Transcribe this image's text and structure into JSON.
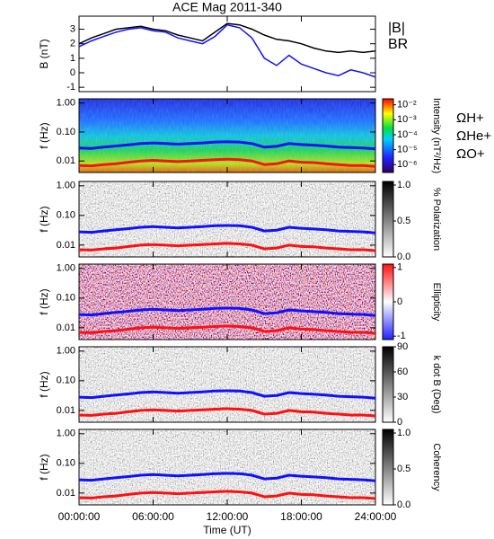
{
  "chart_data": [
    {
      "type": "line",
      "title": "ACE Mag 2011-340",
      "ylabel": "B (nT)",
      "xlim": [
        0,
        24
      ],
      "ylim": [
        -1.3,
        3.9
      ],
      "yticks": [
        -1,
        0,
        1,
        2,
        3
      ],
      "x": [
        0,
        1,
        2,
        3,
        4,
        5,
        6,
        7,
        8,
        9,
        10,
        11,
        12,
        13,
        14,
        15,
        16,
        17,
        18,
        19,
        20,
        21,
        22,
        23,
        24
      ],
      "series": [
        {
          "name": "|B|",
          "color": "#000000",
          "values": [
            2.0,
            2.4,
            2.7,
            3.0,
            3.1,
            3.2,
            3.0,
            2.9,
            2.6,
            2.4,
            2.2,
            2.8,
            3.4,
            3.3,
            3.0,
            2.6,
            2.3,
            2.2,
            2.0,
            1.7,
            1.5,
            1.4,
            1.5,
            1.4,
            1.5
          ]
        },
        {
          "name": "BR",
          "color": "#1010ff",
          "values": [
            1.8,
            2.2,
            2.5,
            2.8,
            3.0,
            3.1,
            2.9,
            2.8,
            2.4,
            2.2,
            2.0,
            2.5,
            3.3,
            3.1,
            2.4,
            1.0,
            0.5,
            1.2,
            0.6,
            0.3,
            0.0,
            -0.2,
            0.2,
            0.0,
            -0.3
          ]
        }
      ]
    },
    {
      "type": "spectrogram",
      "ylabel": "f (Hz)",
      "log_scale": true,
      "xlim": [
        0,
        24
      ],
      "ylim": [
        0.004,
        1.4
      ],
      "yticks": [
        {
          "value": 1,
          "label": "1.00"
        },
        {
          "value": 0.1,
          "label": "0.10"
        },
        {
          "value": 0.01,
          "label": "0.01"
        }
      ],
      "palette": "rainbow",
      "colorbar": {
        "label": "Intensity (nT²/Hz)",
        "log_scale": true,
        "lim": [
          3e-07,
          0.025
        ],
        "ticks": [
          {
            "value": 0.01,
            "label": "10⁻²"
          },
          {
            "value": 0.001,
            "label": "10⁻³"
          },
          {
            "value": 0.0001,
            "label": "10⁻⁴"
          },
          {
            "value": 1e-05,
            "label": "10⁻⁵"
          },
          {
            "value": 1e-06,
            "label": "10⁻⁶"
          }
        ]
      },
      "x": [
        0,
        1,
        2,
        3,
        4,
        5,
        6,
        7,
        8,
        9,
        10,
        11,
        12,
        13,
        14,
        15,
        16,
        17,
        18,
        19,
        20,
        21,
        22,
        23,
        24
      ],
      "series": [
        {
          "name": "ΩH+",
          "color": "#1010ff",
          "values": [
            0.028,
            0.027,
            0.03,
            0.033,
            0.036,
            0.04,
            0.042,
            0.04,
            0.038,
            0.04,
            0.042,
            0.045,
            0.046,
            0.045,
            0.04,
            0.03,
            0.032,
            0.04,
            0.037,
            0.035,
            0.033,
            0.03,
            0.029,
            0.028,
            0.026
          ]
        },
        {
          "name": "ΩHe+",
          "color": "#ff1010",
          "values": [
            0.007,
            0.0068,
            0.0075,
            0.008,
            0.009,
            0.01,
            0.0105,
            0.01,
            0.0095,
            0.01,
            0.0105,
            0.011,
            0.0115,
            0.011,
            0.01,
            0.0075,
            0.008,
            0.01,
            0.009,
            0.0088,
            0.008,
            0.0075,
            0.007,
            0.007,
            0.0065
          ]
        },
        {
          "name": "ΩO+",
          "color": "#ff00ff",
          "values": [
            null,
            null,
            null,
            null,
            null,
            null,
            null,
            null,
            null,
            null,
            null,
            null,
            null,
            null,
            null,
            null,
            null,
            null,
            null,
            null,
            null,
            null,
            null,
            null,
            null
          ]
        }
      ]
    },
    {
      "type": "spectrogram",
      "ylabel": "f (Hz)",
      "log_scale": true,
      "xlim": [
        0,
        24
      ],
      "ylim": [
        0.004,
        1.4
      ],
      "yticks": [
        {
          "value": 1,
          "label": "1.00"
        },
        {
          "value": 0.1,
          "label": "0.10"
        },
        {
          "value": 0.01,
          "label": "0.01"
        }
      ],
      "palette": "gray",
      "colorbar": {
        "label": "% Polarization",
        "lim": [
          0,
          1.05
        ],
        "ticks": [
          {
            "value": 0,
            "label": "0.0"
          },
          0.5,
          {
            "value": 1,
            "label": "1.0"
          }
        ]
      },
      "x": [
        0,
        1,
        2,
        3,
        4,
        5,
        6,
        7,
        8,
        9,
        10,
        11,
        12,
        13,
        14,
        15,
        16,
        17,
        18,
        19,
        20,
        21,
        22,
        23,
        24
      ],
      "series": [
        {
          "color": "#1010ff",
          "values": [
            0.028,
            0.027,
            0.03,
            0.033,
            0.036,
            0.04,
            0.042,
            0.04,
            0.038,
            0.04,
            0.042,
            0.045,
            0.046,
            0.045,
            0.04,
            0.03,
            0.032,
            0.04,
            0.037,
            0.035,
            0.033,
            0.03,
            0.029,
            0.028,
            0.026
          ]
        },
        {
          "color": "#ff1010",
          "values": [
            0.007,
            0.0068,
            0.0075,
            0.008,
            0.009,
            0.01,
            0.0105,
            0.01,
            0.0095,
            0.01,
            0.0105,
            0.011,
            0.0115,
            0.011,
            0.01,
            0.0075,
            0.008,
            0.01,
            0.009,
            0.0088,
            0.008,
            0.0075,
            0.007,
            0.007,
            0.0065
          ]
        }
      ]
    },
    {
      "type": "spectrogram",
      "ylabel": "f (Hz)",
      "log_scale": true,
      "xlim": [
        0,
        24
      ],
      "ylim": [
        0.004,
        1.4
      ],
      "yticks": [
        {
          "value": 1,
          "label": "1.00"
        },
        {
          "value": 0.1,
          "label": "0.10"
        },
        {
          "value": 0.01,
          "label": "0.01"
        }
      ],
      "palette": "diverging",
      "colorbar": {
        "label": "Ellipticity",
        "lim": [
          -1.1,
          1.1
        ],
        "ticks": [
          1,
          0,
          -1
        ]
      },
      "x": [
        0,
        1,
        2,
        3,
        4,
        5,
        6,
        7,
        8,
        9,
        10,
        11,
        12,
        13,
        14,
        15,
        16,
        17,
        18,
        19,
        20,
        21,
        22,
        23,
        24
      ],
      "series": [
        {
          "color": "#1010ff",
          "values": [
            0.028,
            0.027,
            0.03,
            0.033,
            0.036,
            0.04,
            0.042,
            0.04,
            0.038,
            0.04,
            0.042,
            0.045,
            0.046,
            0.045,
            0.04,
            0.03,
            0.032,
            0.04,
            0.037,
            0.035,
            0.033,
            0.03,
            0.029,
            0.028,
            0.026
          ]
        },
        {
          "color": "#ff1010",
          "values": [
            0.007,
            0.0068,
            0.0075,
            0.008,
            0.009,
            0.01,
            0.0105,
            0.01,
            0.0095,
            0.01,
            0.0105,
            0.011,
            0.0115,
            0.011,
            0.01,
            0.0075,
            0.008,
            0.01,
            0.009,
            0.0088,
            0.008,
            0.0075,
            0.007,
            0.007,
            0.0065
          ]
        }
      ]
    },
    {
      "type": "spectrogram",
      "ylabel": "f (Hz)",
      "log_scale": true,
      "xlim": [
        0,
        24
      ],
      "ylim": [
        0.004,
        1.4
      ],
      "yticks": [
        {
          "value": 1,
          "label": "1.00"
        },
        {
          "value": 0.1,
          "label": "0.10"
        },
        {
          "value": 0.01,
          "label": "0.01"
        }
      ],
      "palette": "gray",
      "colorbar": {
        "label": "k dot B (Deg)",
        "lim": [
          0,
          90
        ],
        "ticks": [
          90,
          60,
          30,
          0
        ]
      },
      "x": [
        0,
        1,
        2,
        3,
        4,
        5,
        6,
        7,
        8,
        9,
        10,
        11,
        12,
        13,
        14,
        15,
        16,
        17,
        18,
        19,
        20,
        21,
        22,
        23,
        24
      ],
      "series": [
        {
          "color": "#1010ff",
          "values": [
            0.028,
            0.027,
            0.03,
            0.033,
            0.036,
            0.04,
            0.042,
            0.04,
            0.038,
            0.04,
            0.042,
            0.045,
            0.046,
            0.045,
            0.04,
            0.03,
            0.032,
            0.04,
            0.037,
            0.035,
            0.033,
            0.03,
            0.029,
            0.028,
            0.026
          ]
        },
        {
          "color": "#ff1010",
          "values": [
            0.007,
            0.0068,
            0.0075,
            0.008,
            0.009,
            0.01,
            0.0105,
            0.01,
            0.0095,
            0.01,
            0.0105,
            0.011,
            0.0115,
            0.011,
            0.01,
            0.0075,
            0.008,
            0.01,
            0.009,
            0.0088,
            0.008,
            0.0075,
            0.007,
            0.007,
            0.0065
          ]
        }
      ]
    },
    {
      "type": "spectrogram",
      "ylabel": "f (Hz)",
      "log_scale": true,
      "xlim": [
        0,
        24
      ],
      "ylim": [
        0.004,
        1.4
      ],
      "yticks": [
        {
          "value": 1,
          "label": "1.00"
        },
        {
          "value": 0.1,
          "label": "0.10"
        },
        {
          "value": 0.01,
          "label": "0.01"
        }
      ],
      "palette": "gray",
      "colorbar": {
        "label": "Coherency",
        "lim": [
          0,
          1.05
        ],
        "ticks": [
          {
            "value": 1,
            "label": "1.0"
          },
          0.5,
          {
            "value": 0,
            "label": "0.0"
          }
        ]
      },
      "xlabel": "Time (UT)",
      "xticks": [
        {
          "value": 0,
          "label": "00:00:00"
        },
        {
          "value": 6,
          "label": "06:00:00"
        },
        {
          "value": 12,
          "label": "12:00:00"
        },
        {
          "value": 18,
          "label": "18:00:00"
        },
        {
          "value": 24,
          "label": "24:00:00"
        }
      ],
      "x": [
        0,
        1,
        2,
        3,
        4,
        5,
        6,
        7,
        8,
        9,
        10,
        11,
        12,
        13,
        14,
        15,
        16,
        17,
        18,
        19,
        20,
        21,
        22,
        23,
        24
      ],
      "series": [
        {
          "color": "#1010ff",
          "values": [
            0.028,
            0.027,
            0.03,
            0.033,
            0.036,
            0.04,
            0.042,
            0.04,
            0.038,
            0.04,
            0.042,
            0.045,
            0.046,
            0.045,
            0.04,
            0.03,
            0.032,
            0.04,
            0.037,
            0.035,
            0.033,
            0.03,
            0.029,
            0.028,
            0.026
          ]
        },
        {
          "color": "#ff1010",
          "values": [
            0.007,
            0.0068,
            0.0075,
            0.008,
            0.009,
            0.01,
            0.0105,
            0.01,
            0.0095,
            0.01,
            0.0105,
            0.011,
            0.0115,
            0.011,
            0.01,
            0.0075,
            0.008,
            0.01,
            0.009,
            0.0088,
            0.008,
            0.0075,
            0.007,
            0.007,
            0.0065
          ]
        }
      ]
    }
  ]
}
